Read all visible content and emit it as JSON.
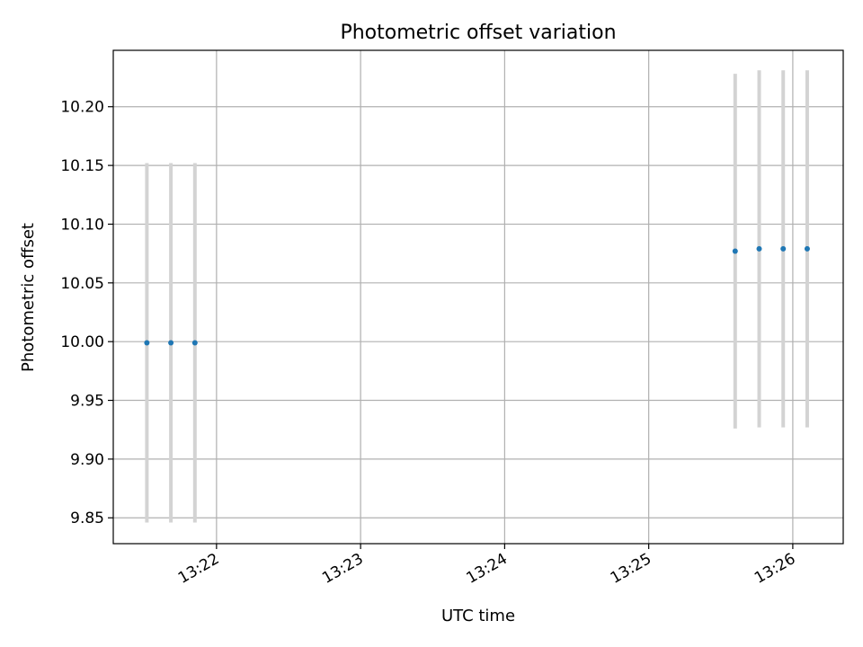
{
  "chart_data": {
    "type": "scatter",
    "title": "Photometric offset variation",
    "xlabel": "UTC time",
    "ylabel": "Photometric offset",
    "x_axis_type": "time",
    "xlim": [
      "13:21:17",
      "13:26:21"
    ],
    "ylim": [
      9.828,
      10.248
    ],
    "xticks": [
      "13:22",
      "13:23",
      "13:24",
      "13:25",
      "13:26"
    ],
    "yticks": [
      "9.85",
      "9.90",
      "9.95",
      "10.00",
      "10.05",
      "10.10",
      "10.15",
      "10.20"
    ],
    "grid": true,
    "marker_color": "#1f77b4",
    "errorbar_color": "#d3d3d3",
    "points": [
      {
        "t": "13:21:31",
        "y": 9.999,
        "err": 0.153
      },
      {
        "t": "13:21:41",
        "y": 9.999,
        "err": 0.153
      },
      {
        "t": "13:21:51",
        "y": 9.999,
        "err": 0.153
      },
      {
        "t": "13:25:36",
        "y": 10.077,
        "err": 0.151
      },
      {
        "t": "13:25:46",
        "y": 10.079,
        "err": 0.152
      },
      {
        "t": "13:25:56",
        "y": 10.079,
        "err": 0.152
      },
      {
        "t": "13:26:06",
        "y": 10.079,
        "err": 0.152
      }
    ]
  }
}
